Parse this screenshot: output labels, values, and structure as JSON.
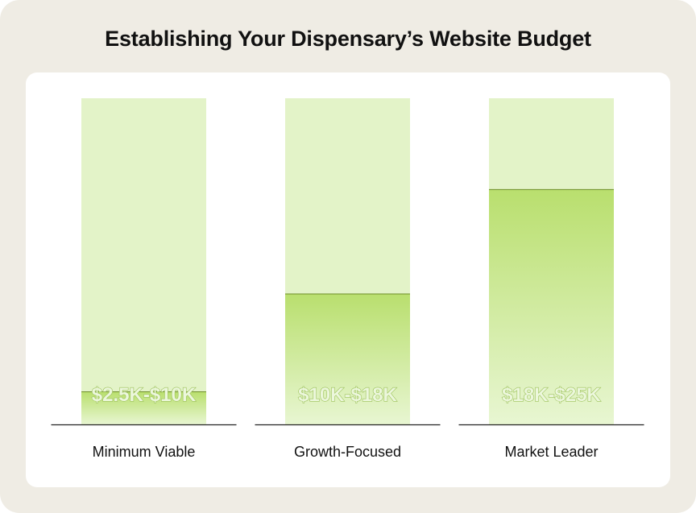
{
  "chart_data": {
    "type": "bar",
    "title": "Establishing Your Dispensary’s Website Budget",
    "categories": [
      "Minimum Viable",
      "Growth-Focused",
      "Market Leader"
    ],
    "series": [
      {
        "values": [
          2.5,
          10,
          18
        ],
        "bar_labels": [
          "$2.5K-$10K",
          "$10K-$18K",
          "$18K-$25K"
        ]
      }
    ],
    "ylim": [
      0,
      25
    ],
    "grid": false,
    "legend": "none"
  },
  "colors": {
    "frame": "#efece4",
    "card": "#ffffff",
    "track": "#e3f3c8",
    "fill_top": "#b9df6e",
    "fill_bottom": "#e8f6d2",
    "fill_edge": "#6f8f2a",
    "label": "#ecf7dc",
    "label_outline": "#9cc15a",
    "axis": "#222222",
    "title": "#111111"
  }
}
